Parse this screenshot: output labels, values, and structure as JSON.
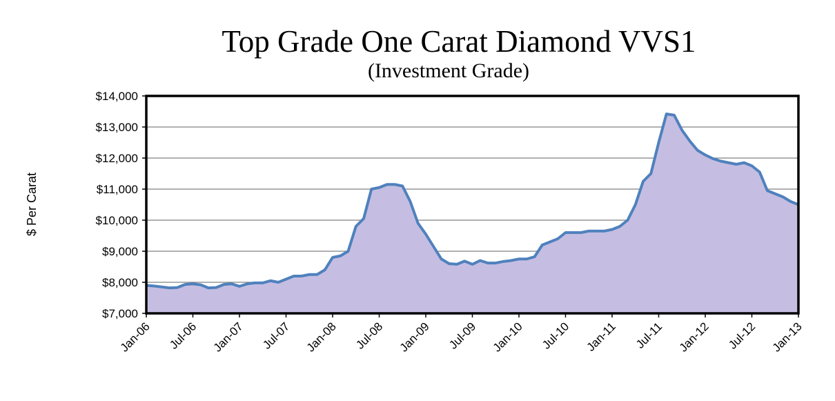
{
  "chart_data": {
    "type": "area",
    "title": "Top Grade One Carat Diamond VVS1",
    "subtitle": "(Investment Grade)",
    "ylabel": "$ Per Carat",
    "xlabel": "",
    "ylim": [
      7000,
      14000
    ],
    "yticks": [
      7000,
      8000,
      9000,
      10000,
      11000,
      12000,
      13000,
      14000
    ],
    "ytick_labels": [
      "$7,000",
      "$8,000",
      "$9,000",
      "$10,000",
      "$11,000",
      "$12,000",
      "$13,000",
      "$14,000"
    ],
    "xtick_labels": [
      "Jan-06",
      "Jul-06",
      "Jan-07",
      "Jul-07",
      "Jan-08",
      "Jul-08",
      "Jan-09",
      "Jul-09",
      "Jan-10",
      "Jul-10",
      "Jan-11",
      "Jul-11",
      "Jan-12",
      "Jul-12",
      "Jan-13"
    ],
    "grid": true,
    "colors": {
      "line": "#4f81bd",
      "fill": "#c5bee2",
      "gridline": "#808080",
      "frame": "#000000"
    },
    "series": [
      {
        "values": [
          7900,
          7880,
          7850,
          7820,
          7830,
          7930,
          7950,
          7920,
          7820,
          7830,
          7930,
          7950,
          7870,
          7950,
          7980,
          7980,
          8050,
          8000,
          8100,
          8200,
          8200,
          8250,
          8250,
          8400,
          8800,
          8850,
          9000,
          9800,
          10050,
          11000,
          11050,
          11150,
          11150,
          11100,
          10600,
          9900,
          9550,
          9150,
          8750,
          8600,
          8580,
          8680,
          8580,
          8700,
          8620,
          8620,
          8670,
          8700,
          8750,
          8750,
          8820,
          9200,
          9300,
          9400,
          9600,
          9600,
          9600,
          9650,
          9650,
          9650,
          9700,
          9800,
          10000,
          10500,
          11250,
          11500,
          12500,
          13420,
          13380,
          12900,
          12550,
          12250,
          12100,
          11980,
          11900,
          11850,
          11800,
          11850,
          11750,
          11550,
          10950,
          10850,
          10750,
          10600,
          10500
        ]
      }
    ]
  }
}
